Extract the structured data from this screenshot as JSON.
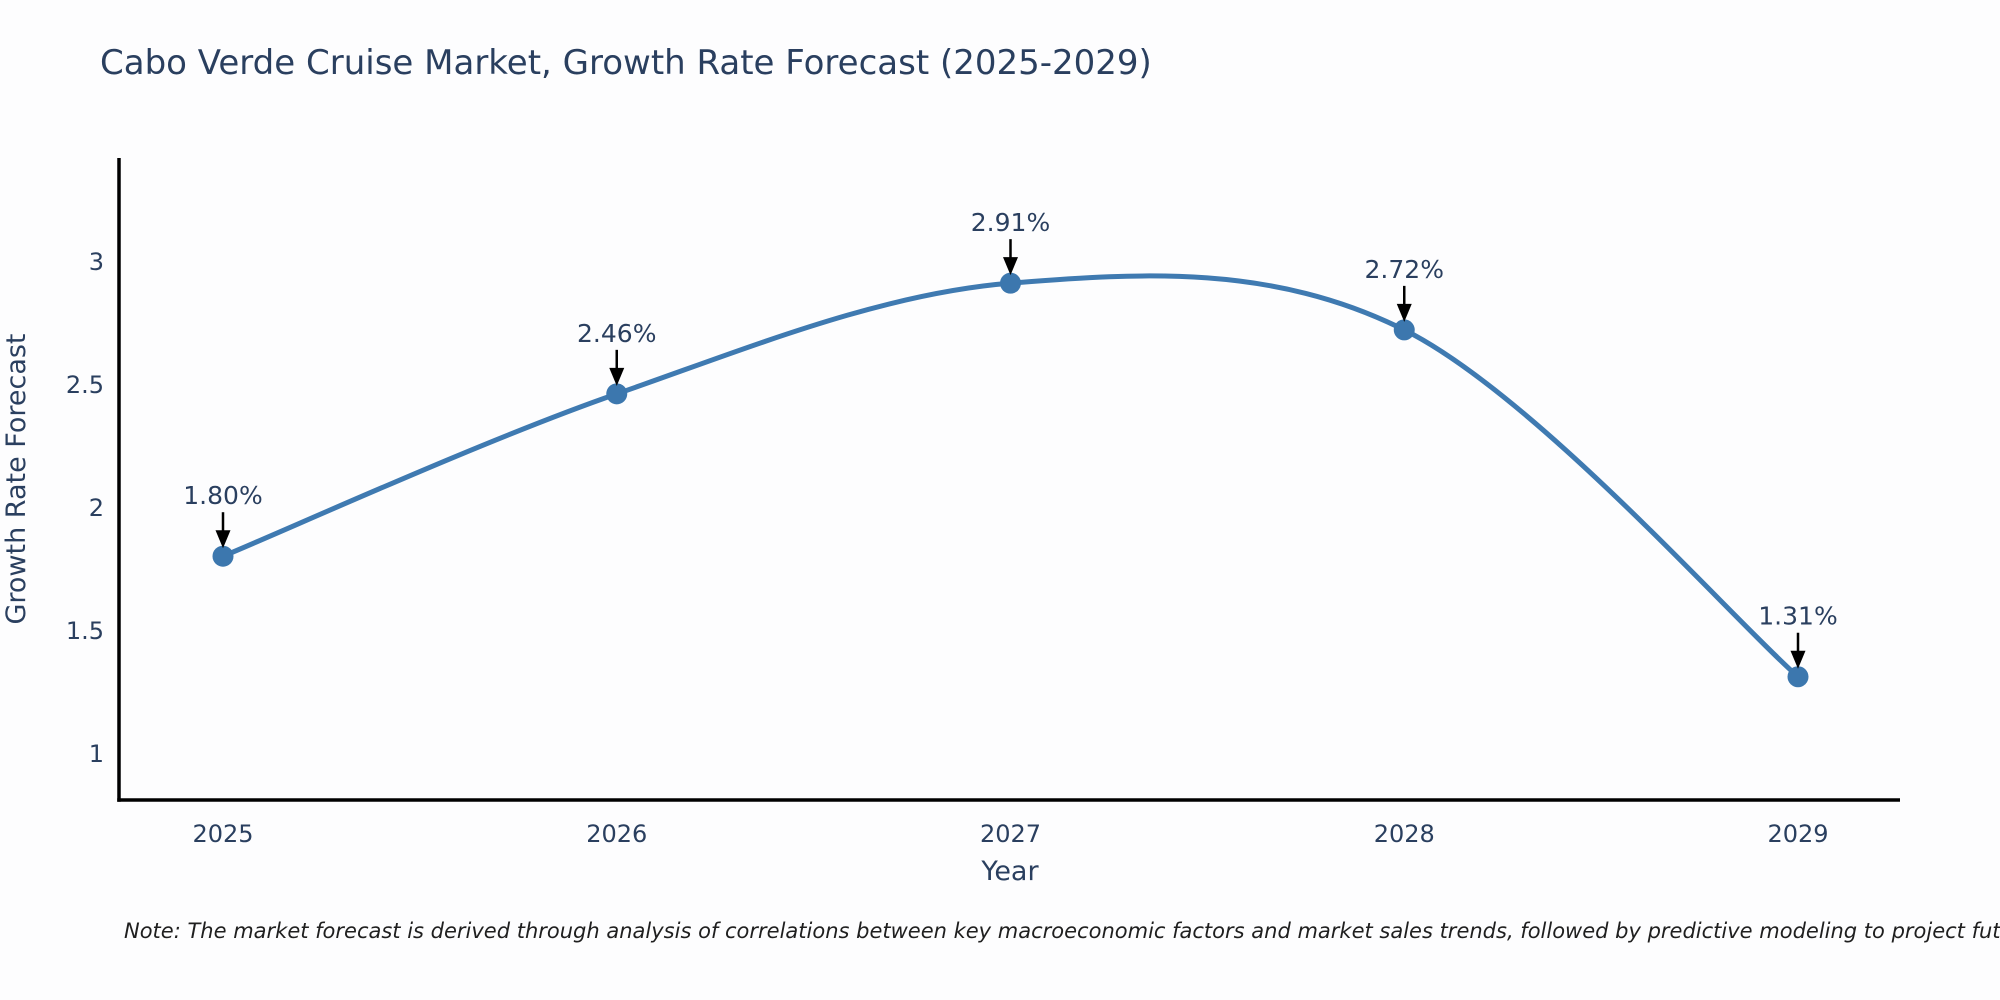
{
  "title": "Cabo Verde Cruise Market, Growth Rate Forecast (2025-2029)",
  "note": "Note: The market forecast is derived through analysis of correlations between key macroeconomic factors and market sales trends, followed by predictive modeling to project future sales",
  "chart_data": {
    "type": "line",
    "line_shape": "spline",
    "title": "Cabo Verde Cruise Market, Growth Rate Forecast (2025-2029)",
    "xlabel": "Year",
    "ylabel": "Growth Rate Forecast",
    "x": [
      2025,
      2026,
      2027,
      2028,
      2029
    ],
    "values": [
      1.8,
      2.46,
      2.91,
      2.72,
      1.31
    ],
    "point_labels": [
      "1.80%",
      "2.46%",
      "2.91%",
      "2.72%",
      "1.31%"
    ],
    "xticks": [
      "2025",
      "2026",
      "2027",
      "2028",
      "2029"
    ],
    "yticks": [
      "1",
      "1.5",
      "2",
      "2.5",
      "3"
    ],
    "ytick_values": [
      1,
      1.5,
      2,
      2.5,
      3
    ],
    "ylim": [
      0.81,
      3.43
    ],
    "grid": false,
    "legend": "none",
    "colors": {
      "line": "#3f7ab1",
      "marker": "#3c77ae",
      "axis": "#000000",
      "annotation_arrow": "#000000",
      "text": "#2a3f5f"
    }
  }
}
